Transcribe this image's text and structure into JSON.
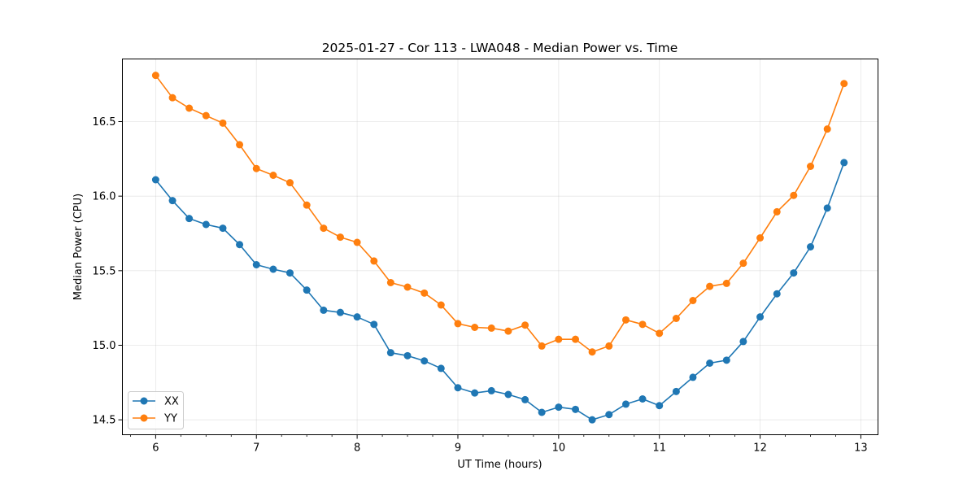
{
  "chart_data": {
    "type": "line",
    "title": "2025-01-27 - Cor 113 - LWA048 - Median Power vs. Time",
    "xlabel": "UT Time (hours)",
    "ylabel": "Median Power (CPU)",
    "xlim": [
      5.67,
      13.17
    ],
    "ylim": [
      14.4,
      16.92
    ],
    "xticks": [
      6,
      7,
      8,
      9,
      10,
      11,
      12,
      13
    ],
    "xtick_labels": [
      "6",
      "7",
      "8",
      "9",
      "10",
      "11",
      "12",
      "13"
    ],
    "xminor_step": 0.25,
    "yticks": [
      14.5,
      15.0,
      15.5,
      16.0,
      16.5
    ],
    "ytick_labels": [
      "14.5",
      "15.0",
      "15.5",
      "16.0",
      "16.5"
    ],
    "grid": true,
    "legend_position": "lower-left",
    "x": [
      6.0,
      6.167,
      6.333,
      6.5,
      6.667,
      6.833,
      7.0,
      7.167,
      7.333,
      7.5,
      7.667,
      7.833,
      8.0,
      8.167,
      8.333,
      8.5,
      8.667,
      8.833,
      9.0,
      9.167,
      9.333,
      9.5,
      9.667,
      9.833,
      10.0,
      10.167,
      10.333,
      10.5,
      10.667,
      10.833,
      11.0,
      11.167,
      11.333,
      11.5,
      11.667,
      11.833,
      12.0,
      12.167,
      12.333,
      12.5,
      12.667,
      12.833
    ],
    "series": [
      {
        "name": "XX",
        "color": "#1f77b4",
        "values": [
          16.11,
          15.97,
          15.85,
          15.81,
          15.785,
          15.675,
          15.54,
          15.51,
          15.485,
          15.37,
          15.235,
          15.22,
          15.19,
          15.14,
          14.95,
          14.93,
          14.895,
          14.845,
          14.715,
          14.68,
          14.695,
          14.67,
          14.635,
          14.55,
          14.585,
          14.57,
          14.5,
          14.535,
          14.605,
          14.64,
          14.595,
          14.69,
          14.785,
          14.88,
          14.9,
          15.025,
          15.19,
          15.345,
          15.485,
          15.66,
          15.92,
          16.225
        ]
      },
      {
        "name": "YY",
        "color": "#ff7f0e",
        "values": [
          16.81,
          16.66,
          16.59,
          16.54,
          16.49,
          16.345,
          16.185,
          16.14,
          16.09,
          15.94,
          15.785,
          15.725,
          15.69,
          15.565,
          15.42,
          15.39,
          15.35,
          15.27,
          15.145,
          15.12,
          15.115,
          15.095,
          15.135,
          14.995,
          15.04,
          15.04,
          14.955,
          14.995,
          15.17,
          15.14,
          15.08,
          15.18,
          15.3,
          15.395,
          15.415,
          15.55,
          15.72,
          15.895,
          16.005,
          16.2,
          16.45,
          16.755
        ]
      }
    ]
  }
}
